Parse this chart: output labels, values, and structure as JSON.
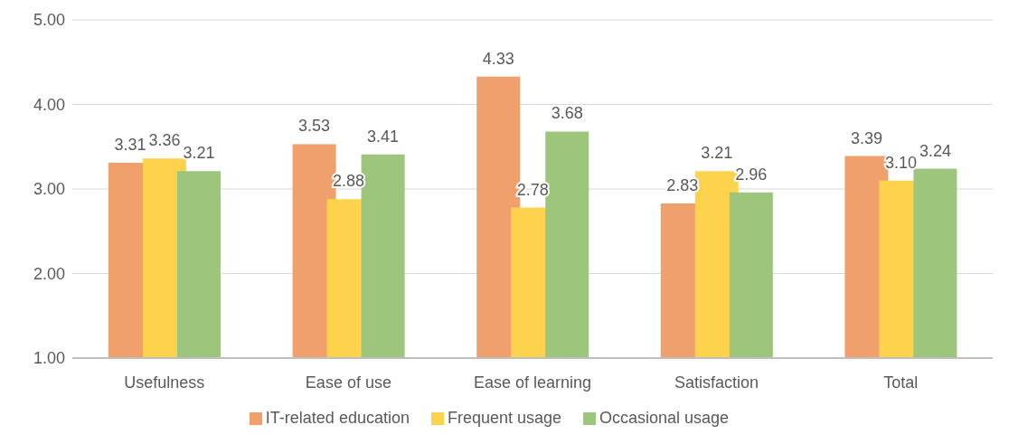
{
  "chart_data": {
    "type": "bar",
    "categories": [
      "Usefulness",
      "Ease of use",
      "Ease of learning",
      "Satisfaction",
      "Total"
    ],
    "series": [
      {
        "name": "IT-related education",
        "color": "#f0a06c",
        "values": [
          3.31,
          3.53,
          4.33,
          2.83,
          3.39
        ],
        "value_labels": [
          "3.31",
          "3.53",
          "4.33",
          "2.83",
          "3.39"
        ]
      },
      {
        "name": "Frequent usage",
        "color": "#fdd34d",
        "values": [
          3.36,
          2.88,
          2.78,
          3.21,
          3.1
        ],
        "value_labels": [
          "3.36",
          "2.88",
          "2.78",
          "3.21",
          "3.10"
        ]
      },
      {
        "name": "Occasional usage",
        "color": "#9dc57c",
        "values": [
          3.21,
          3.41,
          3.68,
          2.96,
          3.24
        ],
        "value_labels": [
          "3.21",
          "3.41",
          "3.68",
          "2.96",
          "3.24"
        ]
      }
    ],
    "ylim": [
      1,
      5
    ],
    "yticks": [
      {
        "value": 1,
        "label": "1.00"
      },
      {
        "value": 2,
        "label": "2.00"
      },
      {
        "value": 3,
        "label": "3.00"
      },
      {
        "value": 4,
        "label": "4.00"
      },
      {
        "value": 5,
        "label": "5.00"
      }
    ],
    "grid": "y",
    "legend": "bottom"
  }
}
